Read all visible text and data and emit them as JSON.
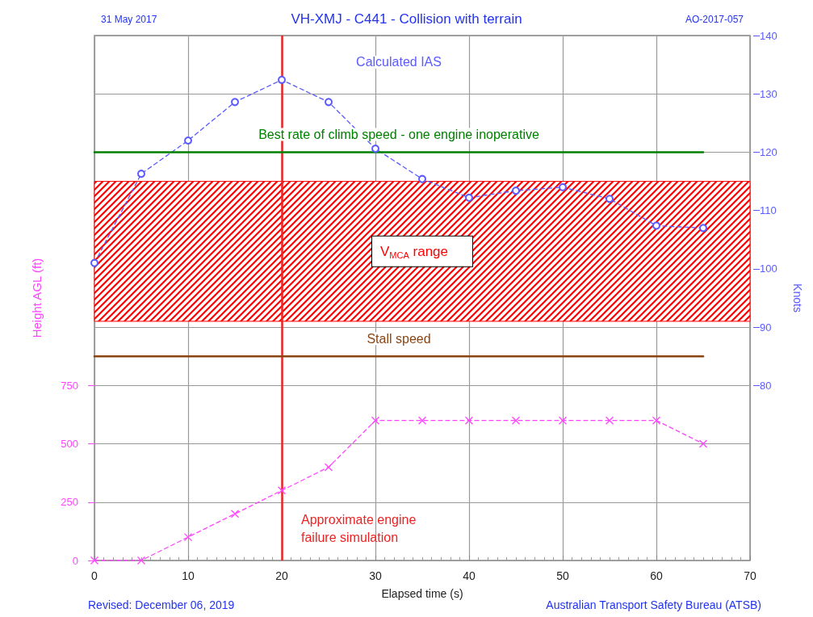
{
  "chart_data": {
    "type": "line",
    "title": "VH-XMJ - C441 - Collision with terrain",
    "xlabel": "Elapsed time (s)",
    "ylabel": "Height AGL (ft)",
    "y2label": "Knots",
    "annotations": [
      "31 May 2017",
      "AO-2017-057",
      "Revised: December 06, 2019",
      "Australian Transport Safety Bureau (ATSB)"
    ],
    "xlim": [
      0,
      70
    ],
    "xticks": [
      0,
      10,
      20,
      30,
      40,
      50,
      60,
      70
    ],
    "ylim": [
      0,
      2250
    ],
    "yticks": [
      0,
      250,
      500,
      750
    ],
    "y2lim": [
      50,
      140
    ],
    "y2ticks": [
      80,
      90,
      100,
      110,
      120,
      130,
      140
    ],
    "grid": true,
    "series": [
      {
        "name": "Calculated IAS",
        "axis": "y2",
        "color": "#5a5aff",
        "marker": "circle",
        "line_style": "dashed",
        "x": [
          0,
          5,
          10,
          15,
          20,
          25,
          30,
          35,
          40,
          45,
          50,
          55,
          60,
          65
        ],
        "values": [
          101,
          116.3,
          122,
          128.6,
          132.4,
          128.6,
          120.6,
          115.4,
          112.2,
          113.4,
          114,
          112,
          107.4,
          107
        ]
      },
      {
        "name": "Best rate of climb speed - one engine inoperative",
        "axis": "y2",
        "color": "#008000",
        "marker": "none",
        "line_style": "solid",
        "x": [
          0,
          65
        ],
        "values": [
          120,
          120
        ]
      },
      {
        "name": "Stall speed",
        "axis": "y2",
        "color": "#8b4513",
        "marker": "none",
        "line_style": "solid",
        "x": [
          0,
          65
        ],
        "values": [
          85,
          85
        ]
      },
      {
        "axis": "y",
        "color": "#ff44ff",
        "marker": "cross",
        "line_style": "dashed",
        "x": [
          0,
          5,
          10,
          15,
          20,
          25,
          30,
          35,
          40,
          45,
          50,
          55,
          60,
          65
        ],
        "values": [
          0,
          0,
          100,
          200,
          300,
          400,
          600,
          600,
          600,
          600,
          600,
          600,
          600,
          500
        ]
      }
    ],
    "bands": [
      {
        "axis": "y2",
        "from": 91,
        "to": 115,
        "label": "V$_{MCA}$ range",
        "color": "#ff0000"
      }
    ],
    "ref_lines": [
      {
        "axis": "x",
        "value": 20,
        "label": "Approximate engine failure simulation",
        "color": "#ee2222",
        "line_style": "solid"
      }
    ]
  }
}
